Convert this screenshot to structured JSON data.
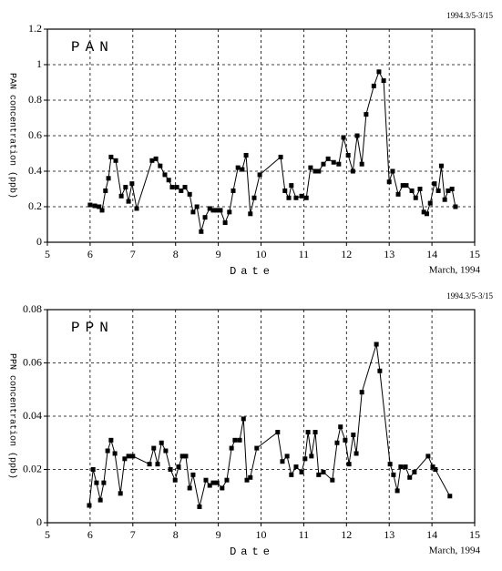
{
  "chart_data": [
    {
      "type": "line",
      "title": "PAN",
      "annotation": "1994.3/5-3/15",
      "xlabel": "Date",
      "xnote": "March, 1994",
      "ylabel": "PAN concentration (ppb)",
      "color": "#000000",
      "grid": true,
      "xlim": [
        5,
        15
      ],
      "xticks": [
        5,
        6,
        7,
        8,
        9,
        10,
        11,
        12,
        13,
        14,
        15
      ],
      "ylim": [
        0,
        1.2
      ],
      "yticks": [
        0,
        0.2,
        0.4,
        0.6,
        0.8,
        1,
        1.2
      ],
      "x": [
        6.0,
        6.11,
        6.21,
        6.28,
        6.36,
        6.43,
        6.49,
        6.6,
        6.73,
        6.83,
        6.9,
        6.98,
        7.09,
        7.45,
        7.54,
        7.64,
        7.75,
        7.84,
        7.92,
        8.03,
        8.13,
        8.22,
        8.33,
        8.41,
        8.5,
        8.6,
        8.69,
        8.8,
        8.88,
        8.97,
        9.05,
        9.16,
        9.26,
        9.35,
        9.46,
        9.56,
        9.65,
        9.75,
        9.84,
        9.97,
        10.46,
        10.56,
        10.65,
        10.71,
        10.82,
        10.95,
        11.06,
        11.16,
        11.27,
        11.35,
        11.46,
        11.57,
        11.7,
        11.82,
        11.93,
        12.04,
        12.15,
        12.25,
        12.36,
        12.46,
        12.64,
        12.76,
        12.87,
        13.0,
        13.08,
        13.21,
        13.32,
        13.4,
        13.53,
        13.62,
        13.72,
        13.81,
        13.88,
        13.96,
        14.06,
        14.15,
        14.22,
        14.3,
        14.38,
        14.47,
        14.55
      ],
      "values": [
        0.21,
        0.205,
        0.2,
        0.18,
        0.29,
        0.36,
        0.48,
        0.46,
        0.26,
        0.31,
        0.23,
        0.33,
        0.19,
        0.46,
        0.47,
        0.43,
        0.38,
        0.35,
        0.31,
        0.31,
        0.29,
        0.31,
        0.27,
        0.17,
        0.2,
        0.06,
        0.14,
        0.19,
        0.18,
        0.18,
        0.18,
        0.11,
        0.17,
        0.29,
        0.42,
        0.41,
        0.49,
        0.16,
        0.25,
        0.38,
        0.48,
        0.29,
        0.25,
        0.32,
        0.25,
        0.26,
        0.25,
        0.42,
        0.4,
        0.4,
        0.44,
        0.47,
        0.45,
        0.44,
        0.59,
        0.49,
        0.4,
        0.6,
        0.44,
        0.72,
        0.88,
        0.96,
        0.91,
        0.34,
        0.4,
        0.27,
        0.32,
        0.32,
        0.29,
        0.25,
        0.3,
        0.17,
        0.16,
        0.22,
        0.33,
        0.29,
        0.43,
        0.24,
        0.29,
        0.3,
        0.2
      ]
    },
    {
      "type": "line",
      "title": "PPN",
      "annotation": "1994.3/5-3/15",
      "xlabel": "Date",
      "xnote": "March, 1994",
      "ylabel": "PPN concentration (ppb)",
      "color": "#000000",
      "grid": true,
      "xlim": [
        5,
        15
      ],
      "xticks": [
        5,
        6,
        7,
        8,
        9,
        10,
        11,
        12,
        13,
        14,
        15
      ],
      "ylim": [
        0,
        0.08
      ],
      "yticks": [
        0,
        0.02,
        0.04,
        0.06,
        0.08
      ],
      "x": [
        5.98,
        6.07,
        6.15,
        6.24,
        6.32,
        6.41,
        6.49,
        6.58,
        6.71,
        6.81,
        6.9,
        7.0,
        7.39,
        7.49,
        7.58,
        7.67,
        7.77,
        7.88,
        7.99,
        8.07,
        8.16,
        8.24,
        8.33,
        8.41,
        8.56,
        8.71,
        8.8,
        8.88,
        8.97,
        9.09,
        9.2,
        9.31,
        9.39,
        9.5,
        9.59,
        9.67,
        9.75,
        9.9,
        10.39,
        10.5,
        10.61,
        10.71,
        10.82,
        10.95,
        11.03,
        11.1,
        11.18,
        11.27,
        11.35,
        11.46,
        11.67,
        11.78,
        11.86,
        11.97,
        12.06,
        12.16,
        12.23,
        12.36,
        12.7,
        12.78,
        13.02,
        13.1,
        13.19,
        13.27,
        13.38,
        13.48,
        13.59,
        13.91,
        14.02,
        14.08,
        14.42
      ],
      "values": [
        0.0065,
        0.02,
        0.015,
        0.0085,
        0.015,
        0.027,
        0.031,
        0.026,
        0.011,
        0.024,
        0.025,
        0.025,
        0.022,
        0.028,
        0.022,
        0.03,
        0.027,
        0.02,
        0.016,
        0.021,
        0.025,
        0.025,
        0.013,
        0.018,
        0.006,
        0.016,
        0.014,
        0.015,
        0.015,
        0.013,
        0.016,
        0.028,
        0.031,
        0.031,
        0.039,
        0.016,
        0.017,
        0.028,
        0.034,
        0.023,
        0.025,
        0.018,
        0.021,
        0.019,
        0.024,
        0.034,
        0.025,
        0.034,
        0.018,
        0.019,
        0.016,
        0.03,
        0.036,
        0.031,
        0.022,
        0.033,
        0.026,
        0.049,
        0.067,
        0.057,
        0.022,
        0.018,
        0.012,
        0.021,
        0.021,
        0.017,
        0.019,
        0.025,
        0.021,
        0.02,
        0.01
      ]
    }
  ]
}
